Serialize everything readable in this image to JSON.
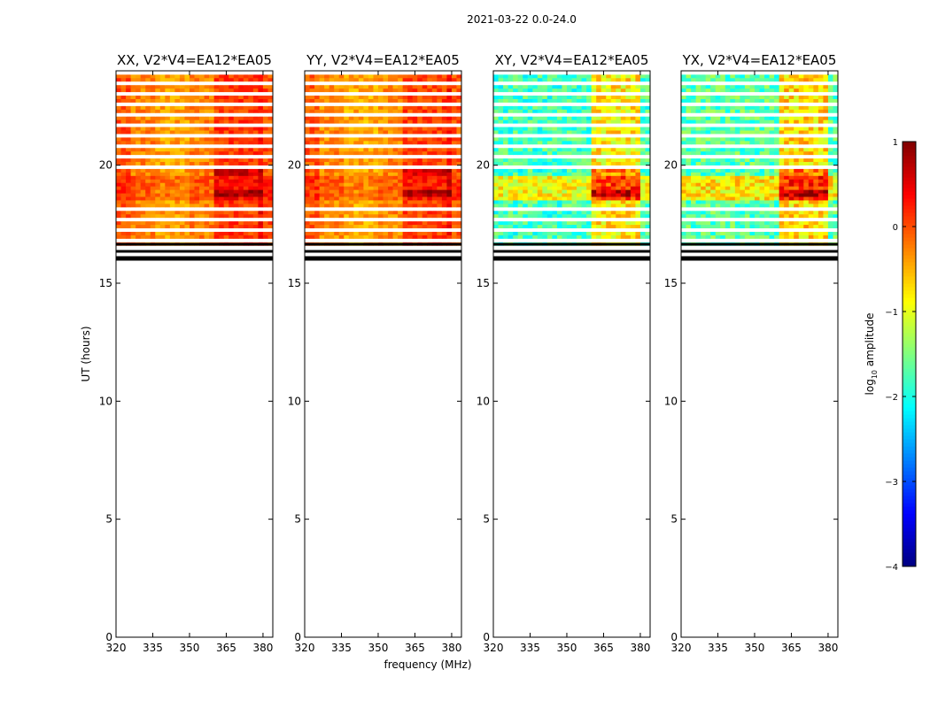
{
  "chart_data": {
    "type": "heatmap",
    "title": "2021-03-22 0.0-24.0",
    "xlabel": "frequency (MHz)",
    "ylabel": "UT (hours)",
    "xlim": [
      320,
      384
    ],
    "ylim": [
      0,
      24
    ],
    "xticks": [
      "320",
      "335",
      "350",
      "365",
      "380"
    ],
    "yticks": [
      "0",
      "5",
      "10",
      "15",
      "20"
    ],
    "data_start_hour": 16.6,
    "flagged_rows_hours": [
      16.05,
      16.35,
      16.65
    ],
    "rfi_bands_mhz": [
      [
        361,
        365
      ],
      [
        366,
        370
      ],
      [
        371,
        375
      ],
      [
        376,
        380
      ]
    ],
    "panels": [
      {
        "name": "XX",
        "title": "XX, V2*V4=EA12*EA05",
        "level": -0.25
      },
      {
        "name": "YY",
        "title": "YY, V2*V4=EA12*EA05",
        "level": -0.3
      },
      {
        "name": "XY",
        "title": "XY, V2*V4=EA12*EA05",
        "level": -1.8
      },
      {
        "name": "YX",
        "title": "YX, V2*V4=EA12*EA05",
        "level": -1.7
      }
    ],
    "colorbar": {
      "label_prefix": "log",
      "label_sub": "10",
      "label_suffix": " amplitude",
      "min": -4,
      "max": 1,
      "ticks": [
        "1",
        "0",
        "−1",
        "−2",
        "−3",
        "−4"
      ],
      "colormap": "jet"
    }
  }
}
